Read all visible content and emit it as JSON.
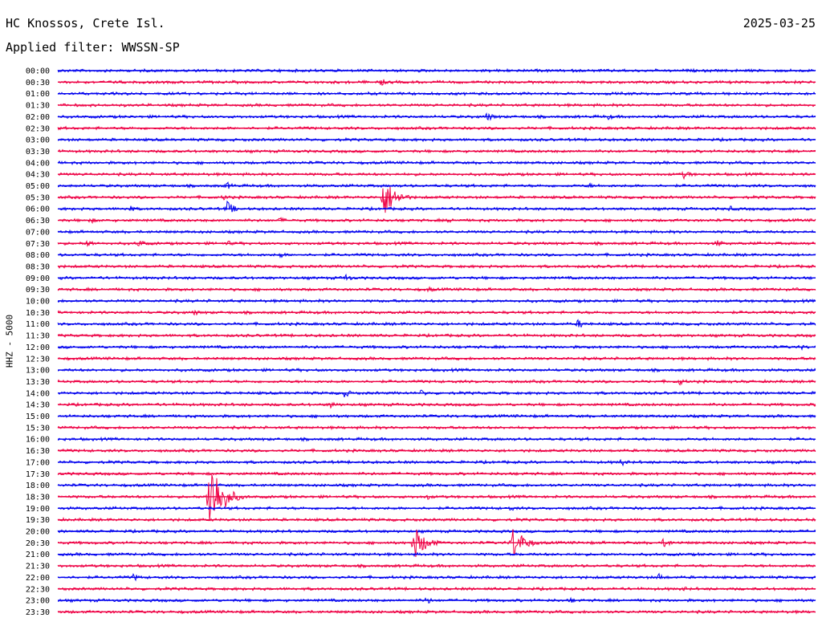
{
  "header": {
    "station": "HC Knossos, Crete Isl.",
    "date": "2025-03-25",
    "filter": "Applied filter: WWSSN-SP",
    "channel": "HHZ - 5000"
  },
  "chart_data": {
    "type": "line",
    "title": "HC Knossos, Crete Isl.",
    "date": "2025-03-25",
    "filter": "WWSSN-SP",
    "ylabel": "HHZ - 5000",
    "rows": [
      "00:00",
      "00:30",
      "01:00",
      "01:30",
      "02:00",
      "02:30",
      "03:00",
      "03:30",
      "04:00",
      "04:30",
      "05:00",
      "05:30",
      "06:00",
      "06:30",
      "07:00",
      "07:30",
      "08:00",
      "08:30",
      "09:00",
      "09:30",
      "10:00",
      "10:30",
      "11:00",
      "11:30",
      "12:00",
      "12:30",
      "13:00",
      "13:30",
      "14:00",
      "14:30",
      "15:00",
      "15:30",
      "16:00",
      "16:30",
      "17:00",
      "17:30",
      "18:00",
      "18:30",
      "19:00",
      "19:30",
      "20:00",
      "20:30",
      "21:00",
      "21:30",
      "22:00",
      "22:30",
      "23:00",
      "23:30"
    ],
    "colors": [
      "#0000ee",
      "#ee0044"
    ],
    "minutes_per_row": 30,
    "noise_amplitude": 1.5,
    "events": [
      {
        "row": 1,
        "minute": 12.8,
        "amp": 5
      },
      {
        "row": 4,
        "minute": 17.0,
        "amp": 6
      },
      {
        "row": 4,
        "minute": 21.8,
        "amp": 4
      },
      {
        "row": 9,
        "minute": 24.8,
        "amp": 6
      },
      {
        "row": 10,
        "minute": 6.7,
        "amp": 5
      },
      {
        "row": 10,
        "minute": 21.0,
        "amp": 4
      },
      {
        "row": 11,
        "minute": 6.6,
        "amp": 4
      },
      {
        "row": 11,
        "minute": 12.9,
        "amp": 26
      },
      {
        "row": 12,
        "minute": 6.7,
        "amp": 10
      },
      {
        "row": 12,
        "minute": 2.8,
        "amp": 5
      },
      {
        "row": 12,
        "minute": 26.6,
        "amp": 4
      },
      {
        "row": 13,
        "minute": 1.3,
        "amp": 4
      },
      {
        "row": 13,
        "minute": 8.8,
        "amp": 4
      },
      {
        "row": 13,
        "minute": 15.5,
        "amp": 4
      },
      {
        "row": 15,
        "minute": 1.2,
        "amp": 5
      },
      {
        "row": 15,
        "minute": 3.2,
        "amp": 5
      },
      {
        "row": 15,
        "minute": 6.7,
        "amp": 4
      },
      {
        "row": 15,
        "minute": 26.1,
        "amp": 5
      },
      {
        "row": 16,
        "minute": 8.8,
        "amp": 4
      },
      {
        "row": 18,
        "minute": 11.4,
        "amp": 5
      },
      {
        "row": 19,
        "minute": 14.7,
        "amp": 4
      },
      {
        "row": 21,
        "minute": 5.4,
        "amp": 4
      },
      {
        "row": 22,
        "minute": 20.6,
        "amp": 6
      },
      {
        "row": 24,
        "minute": 29.4,
        "amp": 4
      },
      {
        "row": 27,
        "minute": 24.6,
        "amp": 5
      },
      {
        "row": 28,
        "minute": 11.3,
        "amp": 7
      },
      {
        "row": 28,
        "minute": 14.4,
        "amp": 5
      },
      {
        "row": 29,
        "minute": 10.8,
        "amp": 5
      },
      {
        "row": 34,
        "minute": 22.3,
        "amp": 5
      },
      {
        "row": 37,
        "minute": 6.0,
        "amp": 55
      },
      {
        "row": 37,
        "minute": 14.6,
        "amp": 4
      },
      {
        "row": 38,
        "minute": 17.9,
        "amp": 4
      },
      {
        "row": 41,
        "minute": 14.1,
        "amp": 22
      },
      {
        "row": 41,
        "minute": 18.0,
        "amp": 22
      },
      {
        "row": 41,
        "minute": 24.0,
        "amp": 7
      },
      {
        "row": 44,
        "minute": 3.0,
        "amp": 5
      },
      {
        "row": 44,
        "minute": 23.8,
        "amp": 5
      },
      {
        "row": 45,
        "minute": 24.7,
        "amp": 4
      },
      {
        "row": 46,
        "minute": 14.6,
        "amp": 5
      },
      {
        "row": 46,
        "minute": 20.3,
        "amp": 4
      }
    ]
  }
}
